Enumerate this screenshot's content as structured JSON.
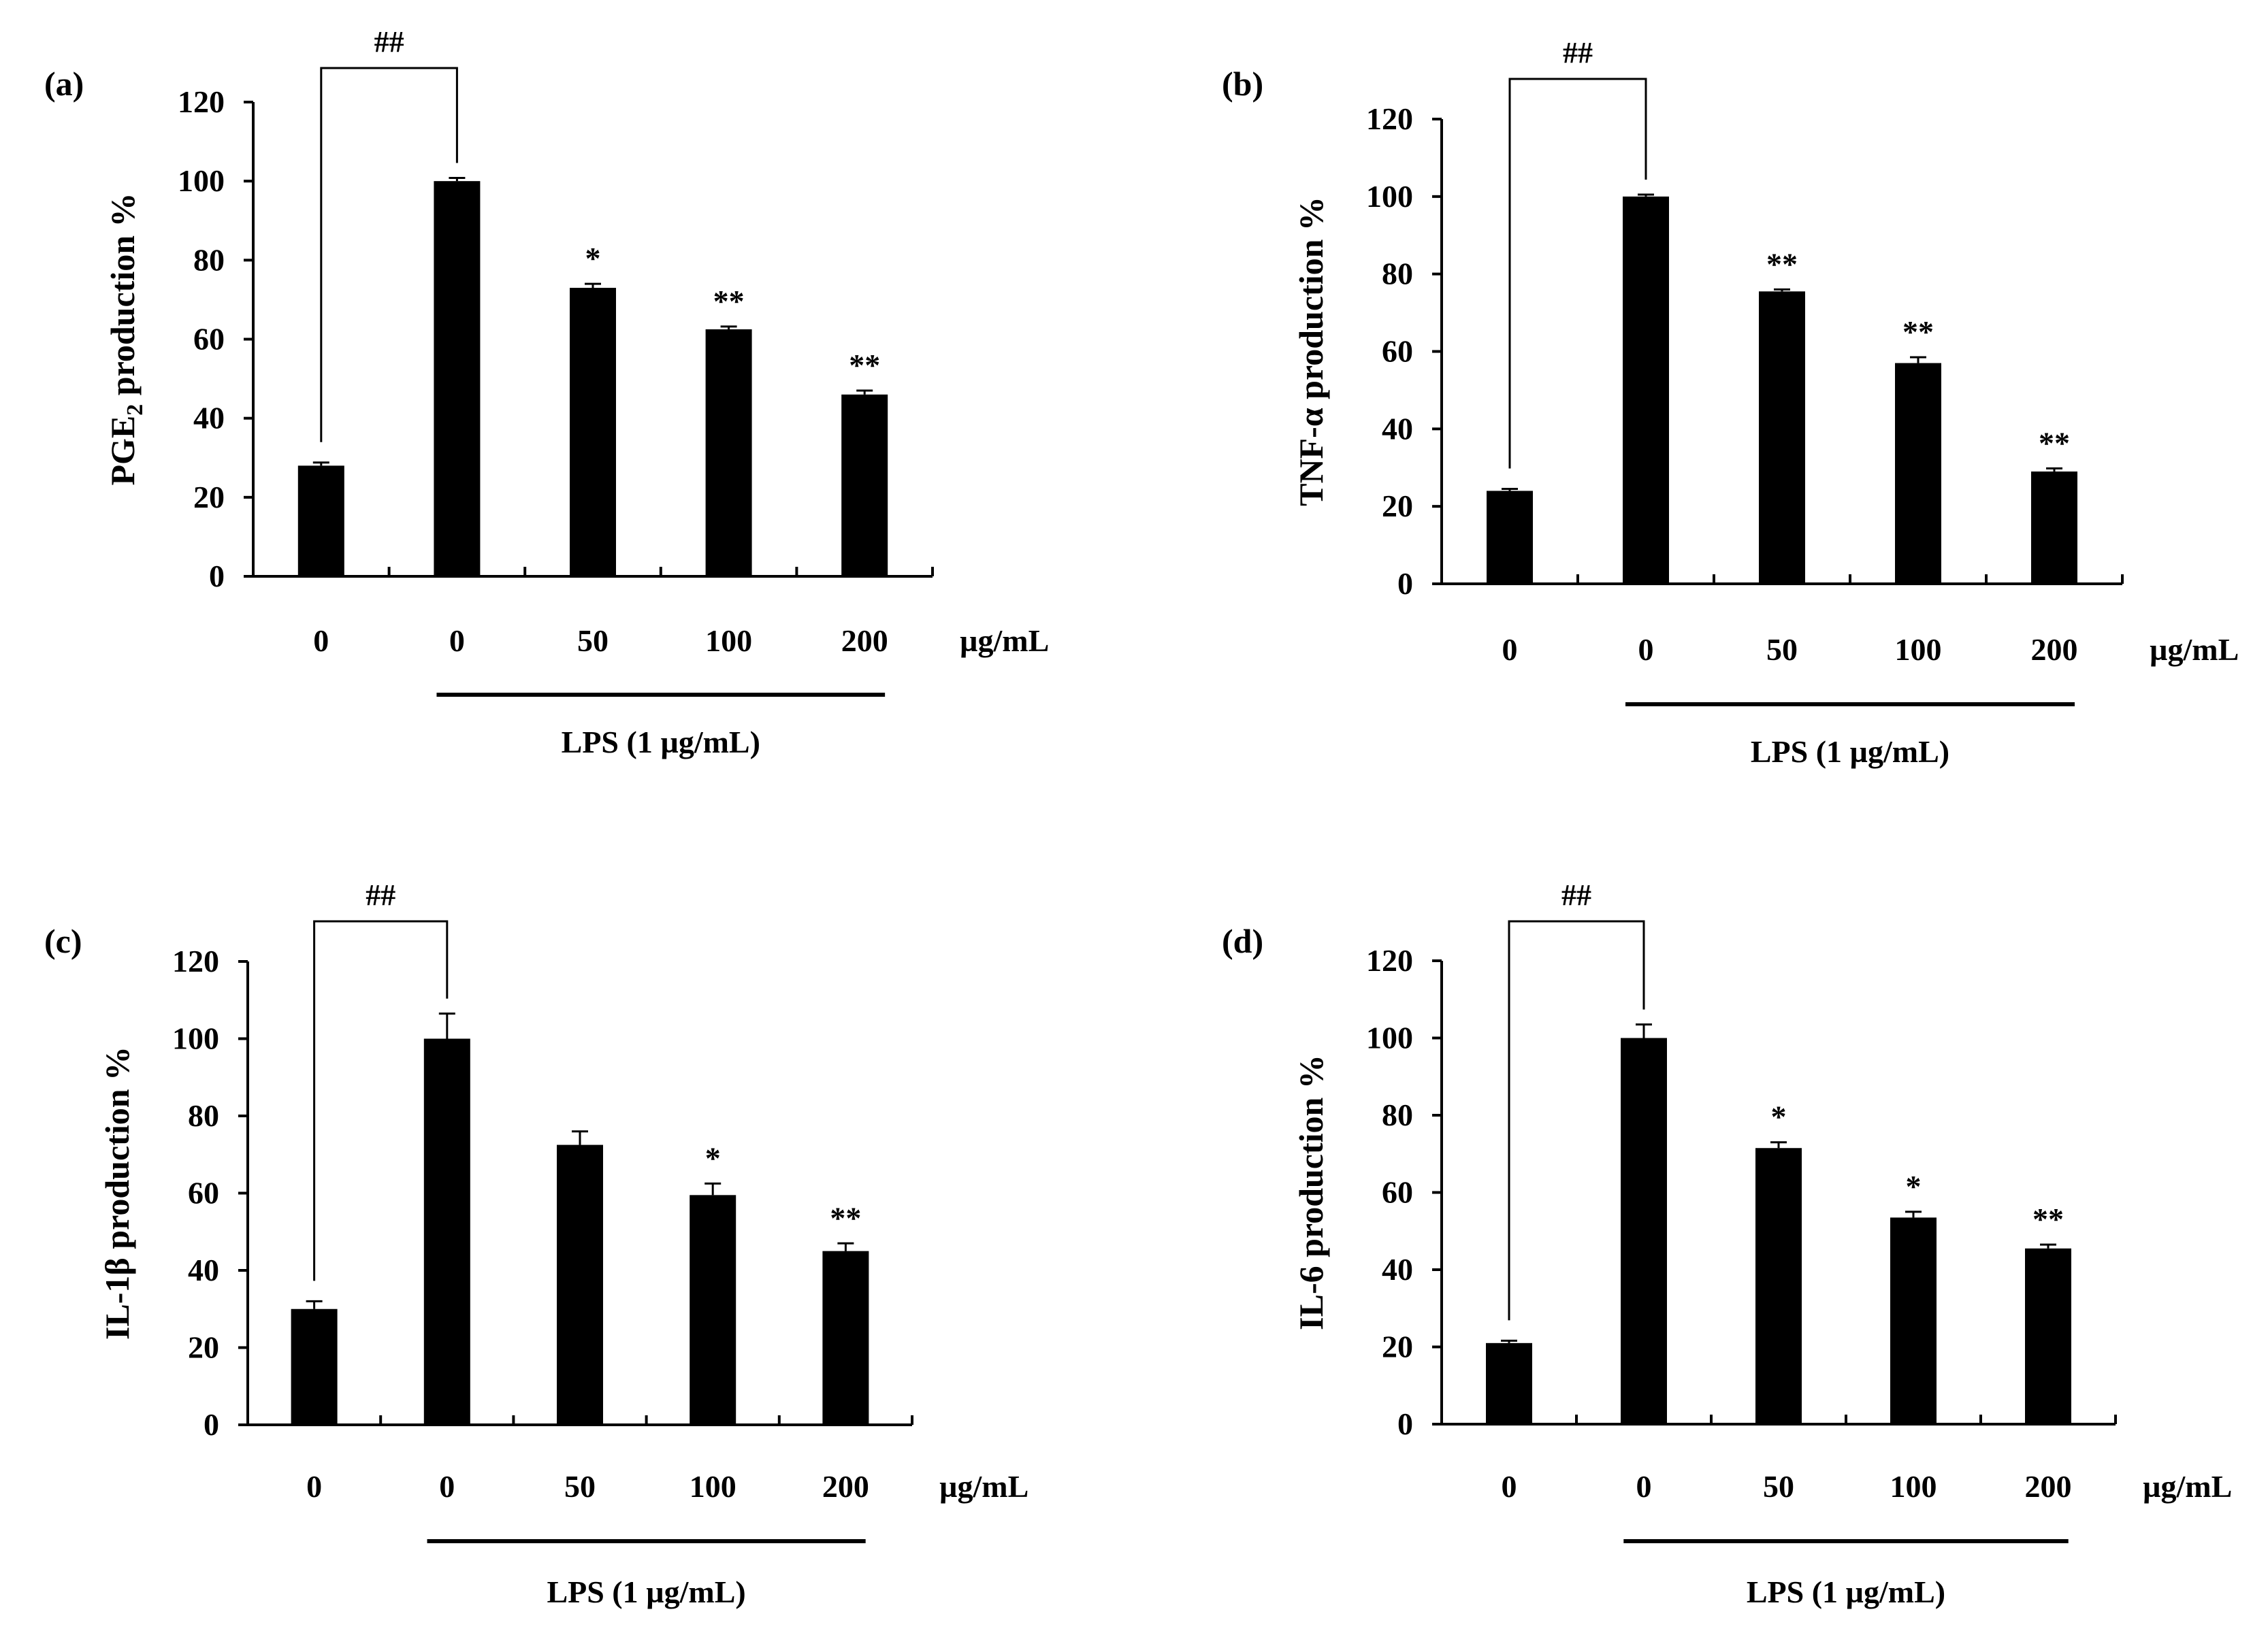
{
  "colors": {
    "bar": "#000000",
    "axis": "#000000",
    "background": "#ffffff"
  },
  "chart_data": [
    {
      "type": "bar",
      "panel": "(a)",
      "ylabel_main": "PGE",
      "ylabel_sub": "2",
      "ylabel_rest": " production %",
      "ylim": [
        0,
        120
      ],
      "yticks": [
        "0",
        "20",
        "40",
        "60",
        "80",
        "100",
        "120"
      ],
      "categories": [
        "0",
        "0",
        "50",
        "100",
        "200"
      ],
      "unit": "µg/mL",
      "values": [
        28,
        100,
        73,
        62.5,
        46
      ],
      "errors": [
        0.8,
        0.8,
        1.0,
        0.7,
        1.0
      ],
      "significance": [
        "",
        "",
        "*",
        "**",
        "**"
      ],
      "bracket_label": "##",
      "group_label": "LPS (1 µg/mL)"
    },
    {
      "type": "bar",
      "panel": "(b)",
      "ylabel_main": "TNF-α production %",
      "ylabel_sub": "",
      "ylabel_rest": "",
      "ylim": [
        0,
        120
      ],
      "yticks": [
        "0",
        "20",
        "40",
        "60",
        "80",
        "100",
        "120"
      ],
      "categories": [
        "0",
        "0",
        "50",
        "100",
        "200"
      ],
      "unit": "µg/mL",
      "values": [
        24,
        100,
        75.5,
        57,
        29
      ],
      "errors": [
        0.5,
        0.5,
        0.5,
        1.5,
        0.8
      ],
      "significance": [
        "",
        "",
        "**",
        "**",
        "**"
      ],
      "bracket_label": "##",
      "group_label": "LPS (1 µg/mL)"
    },
    {
      "type": "bar",
      "panel": "(c)",
      "ylabel_main": "IL-1β production %",
      "ylabel_sub": "",
      "ylabel_rest": "",
      "ylim": [
        0,
        120
      ],
      "yticks": [
        "0",
        "20",
        "40",
        "60",
        "80",
        "100",
        "120"
      ],
      "categories": [
        "0",
        "0",
        "50",
        "100",
        "200"
      ],
      "unit": "µg/mL",
      "values": [
        30,
        100,
        72.5,
        59.5,
        45
      ],
      "errors": [
        2.0,
        6.5,
        3.5,
        3.0,
        2.0
      ],
      "significance": [
        "",
        "",
        "",
        "*",
        "**"
      ],
      "bracket_label": "##",
      "group_label": "LPS (1 µg/mL)"
    },
    {
      "type": "bar",
      "panel": "(d)",
      "ylabel_main": "IL-6 production %",
      "ylabel_sub": "",
      "ylabel_rest": "",
      "ylim": [
        0,
        120
      ],
      "yticks": [
        "0",
        "20",
        "40",
        "60",
        "80",
        "100",
        "120"
      ],
      "categories": [
        "0",
        "0",
        "50",
        "100",
        "200"
      ],
      "unit": "µg/mL",
      "values": [
        21,
        100,
        71.5,
        53.5,
        45.5
      ],
      "errors": [
        0.6,
        3.5,
        1.5,
        1.5,
        1.0
      ],
      "significance": [
        "",
        "",
        "*",
        "*",
        "**"
      ],
      "bracket_label": "##",
      "group_label": "LPS (1 µg/mL)"
    }
  ]
}
